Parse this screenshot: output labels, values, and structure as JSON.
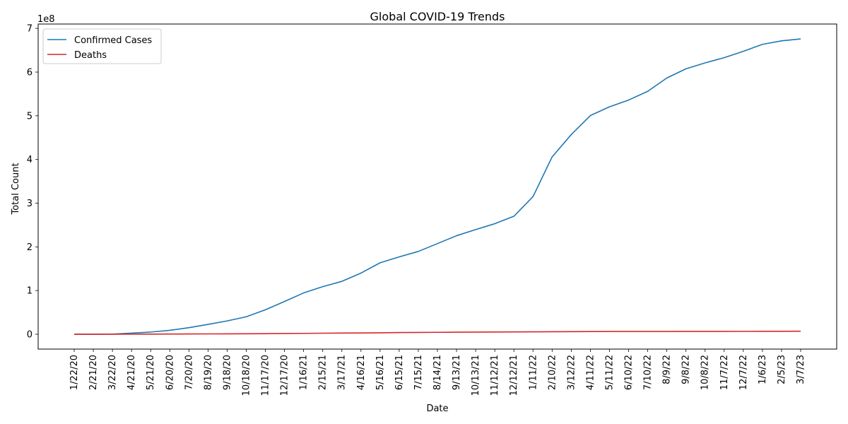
{
  "chart_data": {
    "type": "line",
    "title": "Global COVID-19 Trends",
    "xlabel": "Date",
    "ylabel": "Total Count",
    "y_scale_label": "1e8",
    "categories": [
      "1/22/20",
      "2/21/20",
      "3/22/20",
      "4/21/20",
      "5/21/20",
      "6/20/20",
      "7/20/20",
      "8/19/20",
      "9/18/20",
      "10/18/20",
      "11/17/20",
      "12/17/20",
      "1/16/21",
      "2/15/21",
      "3/17/21",
      "4/16/21",
      "5/16/21",
      "6/15/21",
      "7/15/21",
      "8/14/21",
      "9/13/21",
      "10/13/21",
      "11/12/21",
      "12/12/21",
      "1/11/22",
      "2/10/22",
      "3/12/22",
      "4/11/22",
      "5/11/22",
      "6/10/22",
      "7/10/22",
      "8/9/22",
      "9/8/22",
      "10/8/22",
      "11/7/22",
      "12/7/22",
      "1/6/23",
      "2/5/23",
      "3/7/23"
    ],
    "series": [
      {
        "name": "Confirmed Cases",
        "color": "#1f77b4",
        "values": [
          5.5e-07,
          0.0008,
          0.0034,
          0.025,
          0.05,
          0.09,
          0.15,
          0.225,
          0.305,
          0.4,
          0.56,
          0.75,
          0.945,
          1.09,
          1.21,
          1.4,
          1.635,
          1.77,
          1.895,
          2.075,
          2.255,
          2.395,
          2.53,
          2.7,
          3.15,
          4.06,
          4.57,
          5.005,
          5.205,
          5.36,
          5.56,
          5.865,
          6.075,
          6.21,
          6.33,
          6.475,
          6.635,
          6.715,
          6.76
        ]
      },
      {
        "name": "Deaths",
        "color": "#d62728",
        "values": [
          2e-07,
          2e-05,
          0.0002,
          0.0018,
          0.0033,
          0.0047,
          0.0062,
          0.0079,
          0.0095,
          0.011,
          0.0135,
          0.0165,
          0.02,
          0.024,
          0.0265,
          0.0295,
          0.0335,
          0.0385,
          0.041,
          0.044,
          0.0465,
          0.0495,
          0.051,
          0.053,
          0.055,
          0.0575,
          0.06,
          0.062,
          0.0625,
          0.063,
          0.0635,
          0.064,
          0.065,
          0.0655,
          0.066,
          0.0665,
          0.067,
          0.068,
          0.069
        ]
      }
    ],
    "yticks": [
      0,
      1,
      2,
      3,
      4,
      5,
      6,
      7
    ],
    "ytick_labels": [
      "0",
      "1",
      "2",
      "3",
      "4",
      "5",
      "6",
      "7"
    ],
    "ylim": [
      -0.34,
      7.1
    ],
    "grid": false,
    "legend_position": "top-left"
  }
}
